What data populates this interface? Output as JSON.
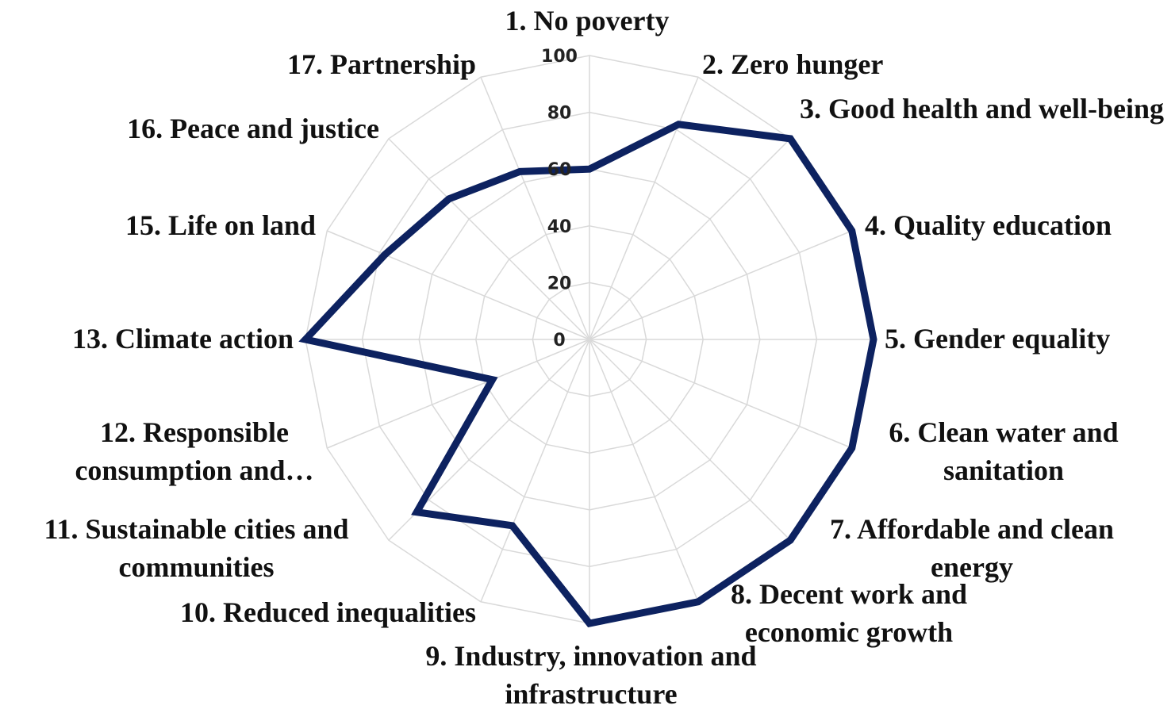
{
  "chart_data": {
    "type": "radar",
    "categories": [
      "1. No poverty",
      "2. Zero hunger",
      "3. Good health and well-being",
      "4. Quality education",
      "5. Gender equality",
      "6. Clean water and sanitation",
      "7. Affordable and clean energy",
      "8. Decent work and economic growth",
      "9. Industry, innovation and infrastructure",
      "10. Reduced inequalities",
      "11. Sustainable cities and communities",
      "12. Responsible consumption and…",
      "13. Climate action",
      "15. Life on land",
      "16. Peace and justice",
      "17. Partnership"
    ],
    "values": [
      60,
      82,
      100,
      100,
      100,
      100,
      100,
      100,
      100,
      71,
      86,
      37,
      100,
      78,
      70,
      64
    ],
    "color": "#0d2260",
    "ylim": [
      0,
      100
    ],
    "yticks": [
      0,
      20,
      40,
      60,
      80,
      100
    ],
    "grid": true
  }
}
